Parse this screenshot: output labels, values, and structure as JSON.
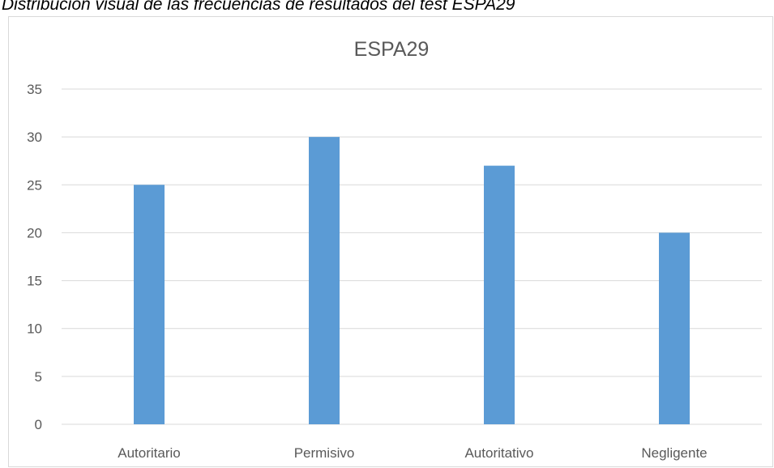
{
  "caption": "Distribución visual de las frecuencias de resultados del test ESPA29",
  "chart_data": {
    "type": "bar",
    "title": "ESPA29",
    "xlabel": "",
    "ylabel": "",
    "categories": [
      "Autoritario",
      "Permisivo",
      "Autoritativo",
      "Negligente"
    ],
    "values": [
      25,
      30,
      27,
      20
    ],
    "ylim": [
      0,
      35
    ],
    "yticks": [
      0,
      5,
      10,
      15,
      20,
      25,
      30,
      35
    ],
    "grid": true,
    "legend": "none",
    "bar_color": "#5b9bd5",
    "grid_color": "#d9d9d9"
  }
}
